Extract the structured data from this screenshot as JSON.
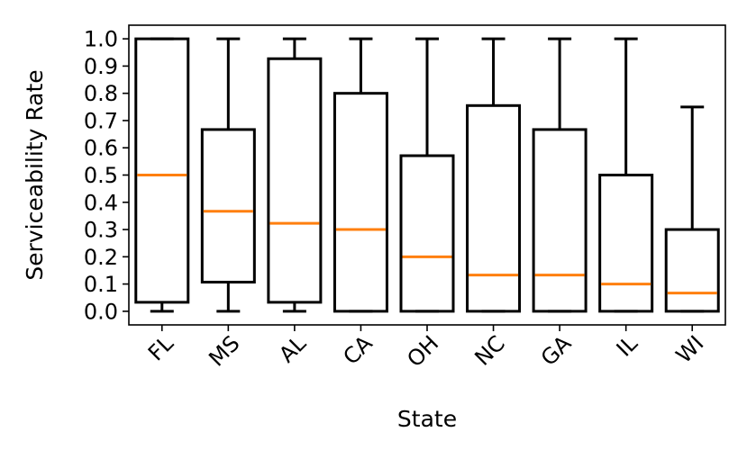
{
  "chart_data": {
    "type": "box",
    "title": "",
    "xlabel": "State",
    "ylabel": "Serviceability Rate",
    "ylim": [
      -0.05,
      1.05
    ],
    "yticks": [
      0.0,
      0.1,
      0.2,
      0.3,
      0.4,
      0.5,
      0.6,
      0.7,
      0.8,
      0.9,
      1.0
    ],
    "ytick_labels": [
      "0.0",
      "0.1",
      "0.2",
      "0.3",
      "0.4",
      "0.5",
      "0.6",
      "0.7",
      "0.8",
      "0.9",
      "1.0"
    ],
    "grid": false,
    "categories": [
      "FL",
      "MS",
      "AL",
      "CA",
      "OH",
      "NC",
      "GA",
      "IL",
      "WI"
    ],
    "boxes": [
      {
        "category": "FL",
        "whisker_low": 0.0,
        "q1": 0.033,
        "median": 0.5,
        "q3": 1.0,
        "whisker_high": 1.0
      },
      {
        "category": "MS",
        "whisker_low": 0.0,
        "q1": 0.107,
        "median": 0.367,
        "q3": 0.667,
        "whisker_high": 1.0
      },
      {
        "category": "AL",
        "whisker_low": 0.0,
        "q1": 0.033,
        "median": 0.323,
        "q3": 0.927,
        "whisker_high": 1.0
      },
      {
        "category": "CA",
        "whisker_low": 0.0,
        "q1": 0.0,
        "median": 0.3,
        "q3": 0.8,
        "whisker_high": 1.0
      },
      {
        "category": "OH",
        "whisker_low": 0.0,
        "q1": 0.0,
        "median": 0.2,
        "q3": 0.571,
        "whisker_high": 1.0
      },
      {
        "category": "NC",
        "whisker_low": 0.0,
        "q1": 0.0,
        "median": 0.133,
        "q3": 0.755,
        "whisker_high": 1.0
      },
      {
        "category": "GA",
        "whisker_low": 0.0,
        "q1": 0.0,
        "median": 0.133,
        "q3": 0.667,
        "whisker_high": 1.0
      },
      {
        "category": "IL",
        "whisker_low": 0.0,
        "q1": 0.0,
        "median": 0.1,
        "q3": 0.5,
        "whisker_high": 1.0
      },
      {
        "category": "WI",
        "whisker_low": 0.0,
        "q1": 0.0,
        "median": 0.067,
        "q3": 0.3,
        "whisker_high": 0.75
      }
    ],
    "colors": {
      "box": "#000000",
      "median": "#ff7f0e",
      "axes": "#000000"
    }
  }
}
